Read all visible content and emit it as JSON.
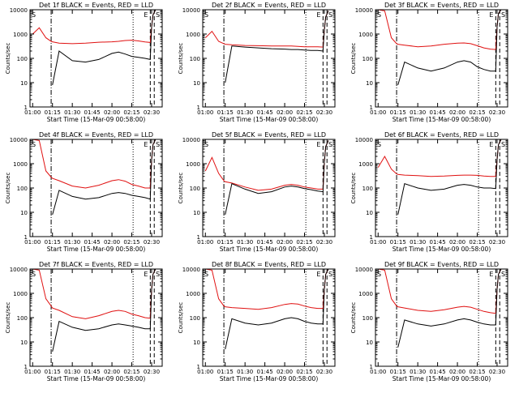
{
  "figure": {
    "start_time_label": "Start Time (15-Mar-09 00:58:00)",
    "y_axis_label": "Counts/sec",
    "x_tick_labels": [
      "01:00",
      "01:15",
      "01:30",
      "01:45",
      "02:00",
      "02:15",
      "02:30"
    ],
    "y_tick_labels": [
      "1",
      "10",
      "100",
      "1000",
      "10000"
    ],
    "marker_letters": [
      "S",
      "E",
      "S"
    ],
    "colors": {
      "events": "#000000",
      "lld": "#e01010",
      "axes": "#000000"
    }
  },
  "chart_data": [
    {
      "type": "line",
      "title": "Det 1f BLACK = Events, RED = LLD",
      "xlabel": "Start Time (15-Mar-09 00:58:00)",
      "ylabel": "Counts/sec",
      "x_unit": "time",
      "xlim": [
        "00:58",
        "02:38"
      ],
      "ylim": [
        1,
        10000
      ],
      "yscale": "log",
      "x": [
        "01:00",
        "01:05",
        "01:10",
        "01:14",
        "01:15",
        "01:20",
        "01:30",
        "01:40",
        "01:50",
        "02:00",
        "02:05",
        "02:10",
        "02:15",
        "02:20",
        "02:25",
        "02:29",
        "02:30",
        "02:31",
        "02:33"
      ],
      "series": [
        {
          "name": "LLD",
          "color": "red",
          "values": [
            1000,
            1800,
            700,
            500,
            480,
            420,
            400,
            420,
            460,
            480,
            500,
            540,
            560,
            520,
            470,
            450,
            2000,
            6000,
            10000
          ]
        },
        {
          "name": "Events",
          "color": "black",
          "values": [
            null,
            null,
            null,
            null,
            8,
            200,
            80,
            70,
            90,
            160,
            180,
            150,
            120,
            110,
            100,
            90,
            2000,
            6000,
            10000
          ]
        }
      ],
      "vlines": [
        {
          "time": "01:14",
          "style": "dash-dot"
        },
        {
          "time": "02:16",
          "style": "dotted"
        },
        {
          "time": "02:29",
          "style": "dashed"
        },
        {
          "time": "02:32",
          "style": "dashed"
        }
      ]
    },
    {
      "type": "line",
      "title": "Det 2f BLACK = Events, RED = LLD",
      "xlabel": "Start Time (15-Mar-09 00:58:00)",
      "ylabel": "Counts/sec",
      "x_unit": "time",
      "xlim": [
        "00:58",
        "02:38"
      ],
      "ylim": [
        1,
        10000
      ],
      "yscale": "log",
      "x": [
        "01:00",
        "01:05",
        "01:10",
        "01:14",
        "01:15",
        "01:20",
        "01:30",
        "01:40",
        "01:50",
        "02:00",
        "02:05",
        "02:10",
        "02:15",
        "02:20",
        "02:25",
        "02:29",
        "02:30",
        "02:31",
        "02:33"
      ],
      "series": [
        {
          "name": "LLD",
          "color": "red",
          "values": [
            700,
            1300,
            500,
            400,
            380,
            360,
            340,
            330,
            320,
            320,
            320,
            310,
            300,
            300,
            300,
            290,
            1500,
            5000,
            9000
          ]
        },
        {
          "name": "Events",
          "color": "black",
          "values": [
            null,
            null,
            null,
            null,
            10,
            320,
            290,
            270,
            250,
            240,
            230,
            230,
            220,
            210,
            210,
            200,
            1500,
            5000,
            9000
          ]
        }
      ],
      "vlines": [
        {
          "time": "01:14",
          "style": "dash-dot"
        },
        {
          "time": "02:16",
          "style": "dotted"
        },
        {
          "time": "02:29",
          "style": "dashed"
        },
        {
          "time": "02:32",
          "style": "dashed"
        }
      ]
    },
    {
      "type": "line",
      "title": "Det 3f BLACK = Events, RED = LLD",
      "xlabel": "Start Time (15-Mar-09 00:58:00)",
      "ylabel": "Counts/sec",
      "x_unit": "time",
      "xlim": [
        "00:58",
        "02:38"
      ],
      "ylim": [
        1,
        10000
      ],
      "yscale": "log",
      "x": [
        "01:00",
        "01:05",
        "01:10",
        "01:14",
        "01:15",
        "01:20",
        "01:30",
        "01:40",
        "01:50",
        "02:00",
        "02:05",
        "02:10",
        "02:15",
        "02:20",
        "02:25",
        "02:29",
        "02:30",
        "02:31",
        "02:33"
      ],
      "series": [
        {
          "name": "LLD",
          "color": "red",
          "values": [
            10000,
            9000,
            700,
            400,
            380,
            350,
            300,
            320,
            380,
            420,
            430,
            400,
            330,
            270,
            240,
            230,
            2000,
            7000,
            10000
          ]
        },
        {
          "name": "Events",
          "color": "black",
          "values": [
            null,
            null,
            null,
            null,
            8,
            70,
            40,
            30,
            40,
            70,
            80,
            70,
            45,
            35,
            30,
            30,
            2000,
            7000,
            10000
          ]
        }
      ],
      "vlines": [
        {
          "time": "01:14",
          "style": "dash-dot"
        },
        {
          "time": "02:16",
          "style": "dotted"
        },
        {
          "time": "02:29",
          "style": "dashed"
        },
        {
          "time": "02:32",
          "style": "dashed"
        }
      ]
    },
    {
      "type": "line",
      "title": "Det 4f BLACK = Events, RED = LLD",
      "xlabel": "Start Time (15-Mar-09 00:58:00)",
      "ylabel": "Counts/sec",
      "x_unit": "time",
      "xlim": [
        "00:58",
        "02:38"
      ],
      "ylim": [
        1,
        10000
      ],
      "yscale": "log",
      "x": [
        "01:00",
        "01:05",
        "01:10",
        "01:14",
        "01:15",
        "01:20",
        "01:30",
        "01:40",
        "01:50",
        "02:00",
        "02:05",
        "02:10",
        "02:15",
        "02:20",
        "02:25",
        "02:29",
        "02:30",
        "02:31",
        "02:33"
      ],
      "series": [
        {
          "name": "LLD",
          "color": "red",
          "values": [
            10000,
            9000,
            500,
            280,
            250,
            200,
            120,
            100,
            130,
            200,
            220,
            190,
            140,
            120,
            100,
            100,
            1500,
            6000,
            10000
          ]
        },
        {
          "name": "Events",
          "color": "black",
          "values": [
            null,
            null,
            null,
            null,
            8,
            80,
            45,
            35,
            40,
            60,
            65,
            60,
            50,
            45,
            40,
            35,
            1500,
            6000,
            10000
          ]
        }
      ],
      "vlines": [
        {
          "time": "01:14",
          "style": "dash-dot"
        },
        {
          "time": "02:16",
          "style": "dotted"
        },
        {
          "time": "02:29",
          "style": "dashed"
        },
        {
          "time": "02:32",
          "style": "dashed"
        }
      ]
    },
    {
      "type": "line",
      "title": "Det 5f BLACK = Events, RED = LLD",
      "xlabel": "Start Time (15-Mar-09 00:58:00)",
      "ylabel": "Counts/sec",
      "x_unit": "time",
      "xlim": [
        "00:58",
        "02:38"
      ],
      "ylim": [
        1,
        10000
      ],
      "yscale": "log",
      "x": [
        "01:00",
        "01:05",
        "01:10",
        "01:14",
        "01:15",
        "01:20",
        "01:30",
        "01:40",
        "01:50",
        "02:00",
        "02:05",
        "02:10",
        "02:15",
        "02:20",
        "02:25",
        "02:29",
        "02:30",
        "02:31",
        "02:33"
      ],
      "series": [
        {
          "name": "LLD",
          "color": "red",
          "values": [
            500,
            1800,
            400,
            200,
            180,
            160,
            110,
            80,
            90,
            130,
            140,
            130,
            110,
            100,
            90,
            90,
            1200,
            5000,
            9000
          ]
        },
        {
          "name": "Events",
          "color": "black",
          "values": [
            null,
            null,
            null,
            null,
            8,
            150,
            90,
            60,
            70,
            110,
            120,
            110,
            95,
            85,
            75,
            70,
            1200,
            5000,
            9000
          ]
        }
      ],
      "vlines": [
        {
          "time": "01:14",
          "style": "dash-dot"
        },
        {
          "time": "02:16",
          "style": "dotted"
        },
        {
          "time": "02:29",
          "style": "dashed"
        },
        {
          "time": "02:32",
          "style": "dashed"
        }
      ]
    },
    {
      "type": "line",
      "title": "Det 6f BLACK = Events, RED = LLD",
      "xlabel": "Start Time (15-Mar-09 00:58:00)",
      "ylabel": "Counts/sec",
      "x_unit": "time",
      "xlim": [
        "00:58",
        "02:38"
      ],
      "ylim": [
        1,
        10000
      ],
      "yscale": "log",
      "x": [
        "01:00",
        "01:05",
        "01:10",
        "01:14",
        "01:15",
        "01:20",
        "01:30",
        "01:40",
        "01:50",
        "02:00",
        "02:05",
        "02:10",
        "02:15",
        "02:20",
        "02:25",
        "02:29",
        "02:30",
        "02:31",
        "02:33"
      ],
      "series": [
        {
          "name": "LLD",
          "color": "red",
          "values": [
            700,
            2000,
            600,
            380,
            360,
            340,
            320,
            300,
            310,
            330,
            340,
            340,
            330,
            310,
            300,
            300,
            1500,
            6000,
            10000
          ]
        },
        {
          "name": "Events",
          "color": "black",
          "values": [
            null,
            null,
            null,
            null,
            8,
            150,
            100,
            80,
            90,
            130,
            140,
            130,
            110,
            100,
            100,
            95,
            1500,
            6000,
            10000
          ]
        }
      ],
      "vlines": [
        {
          "time": "01:14",
          "style": "dash-dot"
        },
        {
          "time": "02:16",
          "style": "dotted"
        },
        {
          "time": "02:29",
          "style": "dashed"
        },
        {
          "time": "02:32",
          "style": "dashed"
        }
      ]
    },
    {
      "type": "line",
      "title": "Det 7f BLACK = Events, RED = LLD",
      "xlabel": "Start Time (15-Mar-09 00:58:00)",
      "ylabel": "Counts/sec",
      "x_unit": "time",
      "xlim": [
        "00:58",
        "02:38"
      ],
      "ylim": [
        1,
        10000
      ],
      "yscale": "log",
      "x": [
        "01:00",
        "01:05",
        "01:10",
        "01:14",
        "01:15",
        "01:20",
        "01:30",
        "01:40",
        "01:50",
        "02:00",
        "02:05",
        "02:10",
        "02:15",
        "02:20",
        "02:25",
        "02:29",
        "02:30",
        "02:31",
        "02:33"
      ],
      "series": [
        {
          "name": "LLD",
          "color": "red",
          "values": [
            10000,
            9000,
            600,
            300,
            250,
            200,
            110,
            90,
            120,
            180,
            200,
            180,
            140,
            120,
            100,
            95,
            1500,
            6000,
            10000
          ]
        },
        {
          "name": "Events",
          "color": "black",
          "values": [
            null,
            null,
            null,
            null,
            4,
            70,
            40,
            30,
            35,
            50,
            55,
            50,
            45,
            40,
            35,
            35,
            1500,
            6000,
            10000
          ]
        }
      ],
      "vlines": [
        {
          "time": "01:14",
          "style": "dash-dot"
        },
        {
          "time": "02:16",
          "style": "dotted"
        },
        {
          "time": "02:29",
          "style": "dashed"
        },
        {
          "time": "02:32",
          "style": "dashed"
        }
      ]
    },
    {
      "type": "line",
      "title": "Det 8f BLACK = Events, RED = LLD",
      "xlabel": "Start Time (15-Mar-09 00:58:00)",
      "ylabel": "Counts/sec",
      "x_unit": "time",
      "xlim": [
        "00:58",
        "02:38"
      ],
      "ylim": [
        1,
        10000
      ],
      "yscale": "log",
      "x": [
        "01:00",
        "01:05",
        "01:10",
        "01:14",
        "01:15",
        "01:20",
        "01:30",
        "01:40",
        "01:50",
        "02:00",
        "02:05",
        "02:10",
        "02:15",
        "02:20",
        "02:25",
        "02:29",
        "02:30",
        "02:31",
        "02:33"
      ],
      "series": [
        {
          "name": "LLD",
          "color": "red",
          "values": [
            10000,
            9000,
            600,
            300,
            280,
            260,
            240,
            220,
            260,
            350,
            380,
            360,
            300,
            260,
            240,
            240,
            1500,
            6000,
            10000
          ]
        },
        {
          "name": "Events",
          "color": "black",
          "values": [
            null,
            null,
            null,
            null,
            5,
            90,
            60,
            50,
            60,
            90,
            100,
            90,
            70,
            60,
            55,
            55,
            1500,
            6000,
            10000
          ]
        }
      ],
      "vlines": [
        {
          "time": "01:14",
          "style": "dash-dot"
        },
        {
          "time": "02:16",
          "style": "dotted"
        },
        {
          "time": "02:29",
          "style": "dashed"
        },
        {
          "time": "02:32",
          "style": "dashed"
        }
      ]
    },
    {
      "type": "line",
      "title": "Det 9f BLACK = Events, RED = LLD",
      "xlabel": "Start Time (15-Mar-09 00:58:00)",
      "ylabel": "Counts/sec",
      "x_unit": "time",
      "xlim": [
        "00:58",
        "02:38"
      ],
      "ylim": [
        1,
        10000
      ],
      "yscale": "log",
      "x": [
        "01:00",
        "01:05",
        "01:10",
        "01:14",
        "01:15",
        "01:20",
        "01:30",
        "01:40",
        "01:50",
        "02:00",
        "02:05",
        "02:10",
        "02:15",
        "02:20",
        "02:25",
        "02:29",
        "02:30",
        "02:31",
        "02:33"
      ],
      "series": [
        {
          "name": "LLD",
          "color": "red",
          "values": [
            10000,
            9000,
            600,
            300,
            280,
            250,
            200,
            180,
            210,
            270,
            290,
            270,
            220,
            180,
            160,
            150,
            1500,
            6000,
            10000
          ]
        },
        {
          "name": "Events",
          "color": "black",
          "values": [
            null,
            null,
            null,
            null,
            6,
            80,
            55,
            45,
            55,
            80,
            90,
            80,
            65,
            55,
            50,
            50,
            1500,
            6000,
            10000
          ]
        }
      ],
      "vlines": [
        {
          "time": "01:14",
          "style": "dash-dot"
        },
        {
          "time": "02:16",
          "style": "dotted"
        },
        {
          "time": "02:29",
          "style": "dashed"
        },
        {
          "time": "02:32",
          "style": "dashed"
        }
      ]
    }
  ]
}
